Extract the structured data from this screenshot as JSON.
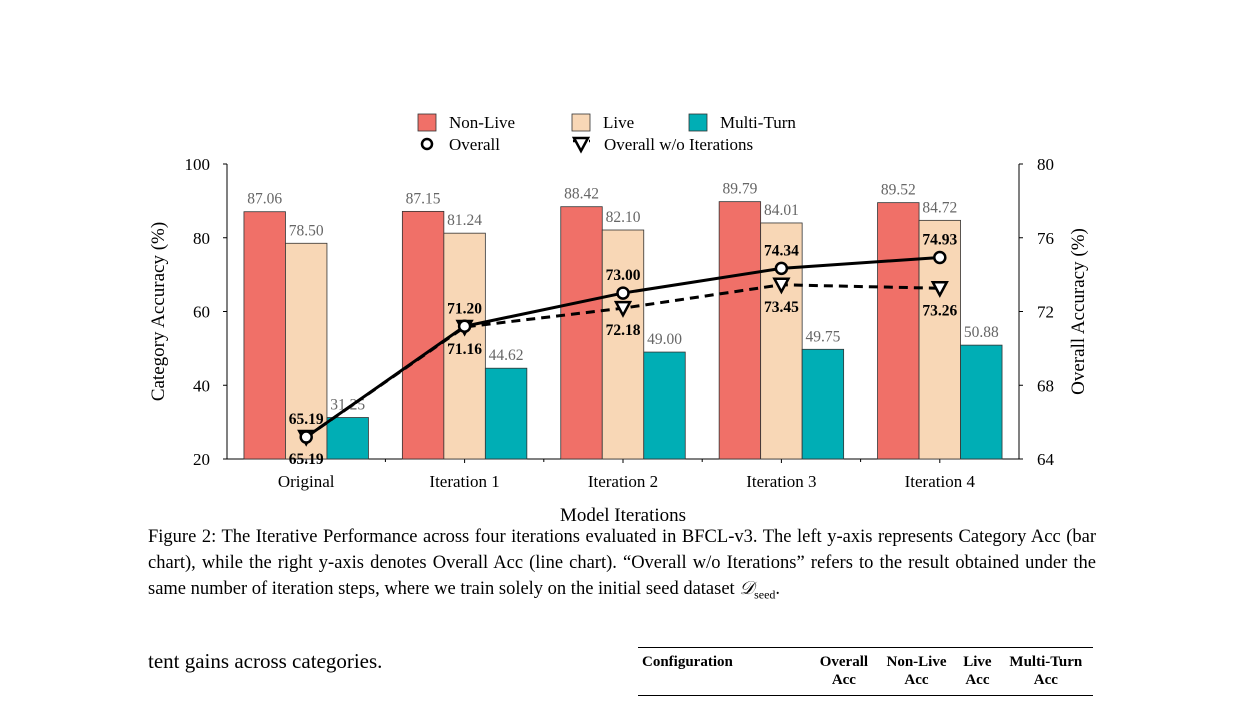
{
  "chart_data": {
    "type": "bar",
    "categories": [
      "Original",
      "Iteration 1",
      "Iteration 2",
      "Iteration 3",
      "Iteration 4"
    ],
    "series": [
      {
        "name": "Non-Live",
        "axis": "left",
        "kind": "bar",
        "color": "#f07068",
        "values": [
          87.06,
          87.15,
          88.42,
          89.79,
          89.52
        ],
        "labels": [
          "87.06",
          "87.15",
          "88.42",
          "89.79",
          "89.52"
        ]
      },
      {
        "name": "Live",
        "axis": "left",
        "kind": "bar",
        "color": "#f8d7b6",
        "values": [
          78.5,
          81.24,
          82.1,
          84.01,
          84.72
        ],
        "labels": [
          "78.50",
          "81.24",
          "82.10",
          "84.01",
          "84.72"
        ]
      },
      {
        "name": "Multi-Turn",
        "axis": "left",
        "kind": "bar",
        "color": "#00aeb5",
        "values": [
          31.25,
          44.62,
          49.0,
          49.75,
          50.88
        ],
        "labels": [
          "31.25",
          "44.62",
          "49.00",
          "49.75",
          "50.88"
        ]
      },
      {
        "name": "Overall",
        "axis": "right",
        "kind": "line",
        "values": [
          65.19,
          71.2,
          73.0,
          74.34,
          74.93
        ],
        "labels": [
          "65.19",
          "71.20",
          "73.00",
          "74.34",
          "74.93"
        ]
      },
      {
        "name": "Overall w/o Iterations",
        "axis": "right",
        "kind": "dashed-line",
        "values": [
          65.19,
          71.16,
          72.18,
          73.45,
          73.26
        ],
        "labels": [
          "65.19",
          "71.16",
          "72.18",
          "73.45",
          "73.26"
        ]
      }
    ],
    "xlabel": "Model Iterations",
    "ylabel": "Category Accuracy  (%)",
    "y2label": "Overall Accuracy (%)",
    "ylim": [
      20,
      100
    ],
    "y2lim": [
      64,
      80
    ],
    "yticks": [
      "20",
      "40",
      "60",
      "80",
      "100"
    ],
    "y2ticks": [
      "64",
      "68",
      "72",
      "76",
      "80"
    ],
    "legend_placement": "top-center",
    "grid": false
  },
  "caption": {
    "text": "Figure 2: The Iterative Performance across four iterations evaluated in BFCL-v3. The left y-axis represents Category Acc (bar chart), while the right y-axis denotes Overall Acc (line chart). “Overall w/o Iterations” refers to the result obtained under the same number of iteration steps, where we train solely on the initial seed dataset ",
    "symbol": "𝒟",
    "symbol_sub": "seed",
    "end": "."
  },
  "body_text": "tent gains across categories.",
  "table": {
    "headers": [
      {
        "line1": "Configuration",
        "line2": ""
      },
      {
        "line1": "Overall",
        "line2": "Acc"
      },
      {
        "line1": "Non-Live",
        "line2": "Acc"
      },
      {
        "line1": "Live",
        "line2": "Acc"
      },
      {
        "line1": "Multi-Turn",
        "line2": "Acc"
      }
    ]
  }
}
